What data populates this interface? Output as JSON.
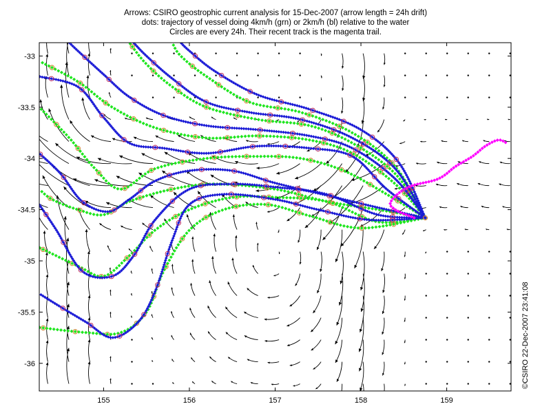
{
  "title_lines": [
    "Arrows: CSIRO geostrophic current analysis for 15-Dec-2007 (arrow length = 24h drift)",
    "dots: trajectory of vessel doing 4km/h (grn) or 2km/h (bl) relative to the water",
    "Circles are every 24h. Their recent track is the magenta trail."
  ],
  "side_text": "©CSIRO 22-Dec-2007 23:41:08",
  "chart_data": {
    "type": "line",
    "xlim": [
      154.25,
      159.75
    ],
    "ylim": [
      -36.27,
      -32.87
    ],
    "xticks": [
      155,
      156,
      157,
      158,
      159
    ],
    "yticks": [
      -33,
      -33.5,
      -34,
      -34.5,
      -35,
      -35.5,
      -36
    ],
    "xtick_labels": [
      "155",
      "156",
      "157",
      "158",
      "159"
    ],
    "ytick_labels": [
      "-33",
      "-33.5",
      "-34",
      "-34.5",
      "-35",
      "-35.5",
      "-36"
    ],
    "grid": false,
    "colors": {
      "green": "#1ee61e",
      "blue": "#1a1ad6",
      "magenta": "#ff00ff",
      "circle": "#d08030",
      "arrows": "#000000"
    },
    "start_point": [
      158.75,
      -34.58
    ],
    "series": [
      {
        "color": "green",
        "points": [
          [
            158.75,
            -34.58
          ],
          [
            158.2,
            -34.5
          ],
          [
            157.6,
            -34.42
          ],
          [
            157.0,
            -34.3
          ],
          [
            156.3,
            -34.25
          ],
          [
            155.8,
            -34.3
          ],
          [
            155.3,
            -34.42
          ],
          [
            155.0,
            -34.55
          ],
          [
            154.7,
            -34.5
          ],
          [
            154.4,
            -34.4
          ],
          [
            154.25,
            -34.3
          ]
        ]
      },
      {
        "color": "green",
        "points": [
          [
            158.75,
            -34.58
          ],
          [
            158.2,
            -34.62
          ],
          [
            157.6,
            -34.42
          ],
          [
            157.0,
            -34.38
          ],
          [
            156.5,
            -34.38
          ],
          [
            156.0,
            -34.5
          ],
          [
            155.6,
            -34.7
          ],
          [
            155.3,
            -34.95
          ],
          [
            155.0,
            -35.15
          ],
          [
            154.7,
            -35.05
          ],
          [
            154.25,
            -34.87
          ]
        ]
      },
      {
        "color": "green",
        "points": [
          [
            158.75,
            -34.58
          ],
          [
            158.0,
            -34.68
          ],
          [
            157.4,
            -34.56
          ],
          [
            156.9,
            -34.45
          ],
          [
            156.4,
            -34.5
          ],
          [
            156.0,
            -34.7
          ],
          [
            155.7,
            -35.1
          ],
          [
            155.5,
            -35.5
          ],
          [
            155.2,
            -35.7
          ],
          [
            154.8,
            -35.7
          ],
          [
            154.25,
            -35.65
          ]
        ]
      },
      {
        "color": "green",
        "points": [
          [
            158.75,
            -34.58
          ],
          [
            158.3,
            -34.35
          ],
          [
            157.8,
            -34.12
          ],
          [
            157.3,
            -34.0
          ],
          [
            156.8,
            -33.98
          ],
          [
            156.2,
            -34.0
          ],
          [
            155.6,
            -34.1
          ],
          [
            155.2,
            -34.3
          ],
          [
            154.9,
            -34.1
          ],
          [
            154.6,
            -33.8
          ],
          [
            154.25,
            -33.5
          ]
        ]
      },
      {
        "color": "green",
        "points": [
          [
            158.75,
            -34.58
          ],
          [
            158.4,
            -34.25
          ],
          [
            157.9,
            -33.95
          ],
          [
            157.4,
            -33.82
          ],
          [
            156.8,
            -33.78
          ],
          [
            156.2,
            -33.8
          ],
          [
            155.6,
            -33.7
          ],
          [
            155.1,
            -33.5
          ],
          [
            154.7,
            -33.25
          ],
          [
            154.25,
            -33.05
          ]
        ]
      },
      {
        "color": "green",
        "points": [
          [
            158.75,
            -34.58
          ],
          [
            158.4,
            -34.15
          ],
          [
            157.9,
            -33.85
          ],
          [
            157.4,
            -33.68
          ],
          [
            156.8,
            -33.62
          ],
          [
            156.2,
            -33.5
          ],
          [
            155.8,
            -33.3
          ],
          [
            155.5,
            -33.08
          ],
          [
            155.3,
            -32.87
          ]
        ]
      },
      {
        "color": "green",
        "points": [
          [
            158.75,
            -34.58
          ],
          [
            158.4,
            -34.08
          ],
          [
            157.9,
            -33.75
          ],
          [
            157.3,
            -33.55
          ],
          [
            156.7,
            -33.45
          ],
          [
            156.2,
            -33.2
          ],
          [
            155.9,
            -33.0
          ],
          [
            155.8,
            -32.87
          ]
        ]
      },
      {
        "color": "blue",
        "points": [
          [
            158.75,
            -34.58
          ],
          [
            158.2,
            -34.48
          ],
          [
            157.6,
            -34.36
          ],
          [
            157.0,
            -34.24
          ],
          [
            156.5,
            -34.12
          ],
          [
            156.0,
            -34.12
          ],
          [
            155.6,
            -34.22
          ],
          [
            155.3,
            -34.4
          ],
          [
            155.05,
            -34.52
          ],
          [
            154.75,
            -34.42
          ],
          [
            154.5,
            -34.15
          ],
          [
            154.25,
            -33.95
          ]
        ]
      },
      {
        "color": "blue",
        "points": [
          [
            158.75,
            -34.58
          ],
          [
            158.2,
            -34.55
          ],
          [
            157.6,
            -34.35
          ],
          [
            157.0,
            -34.28
          ],
          [
            156.5,
            -34.25
          ],
          [
            156.0,
            -34.3
          ],
          [
            155.6,
            -34.6
          ],
          [
            155.35,
            -34.95
          ],
          [
            155.1,
            -35.15
          ],
          [
            154.75,
            -35.1
          ],
          [
            154.45,
            -34.7
          ],
          [
            154.25,
            -34.45
          ]
        ]
      },
      {
        "color": "blue",
        "points": [
          [
            158.75,
            -34.58
          ],
          [
            158.1,
            -34.6
          ],
          [
            157.5,
            -34.5
          ],
          [
            157.0,
            -34.4
          ],
          [
            156.4,
            -34.35
          ],
          [
            156.0,
            -34.45
          ],
          [
            155.8,
            -34.8
          ],
          [
            155.6,
            -35.3
          ],
          [
            155.4,
            -35.6
          ],
          [
            155.1,
            -35.75
          ],
          [
            154.8,
            -35.6
          ],
          [
            154.5,
            -35.45
          ],
          [
            154.25,
            -35.32
          ]
        ]
      },
      {
        "color": "blue",
        "points": [
          [
            158.75,
            -34.58
          ],
          [
            158.3,
            -34.3
          ],
          [
            157.9,
            -33.98
          ],
          [
            157.4,
            -33.9
          ],
          [
            156.8,
            -33.88
          ],
          [
            156.2,
            -33.95
          ],
          [
            155.7,
            -33.9
          ],
          [
            155.3,
            -33.85
          ],
          [
            155.0,
            -33.6
          ],
          [
            154.7,
            -33.3
          ],
          [
            154.25,
            -33.2
          ]
        ]
      },
      {
        "color": "blue",
        "points": [
          [
            158.75,
            -34.58
          ],
          [
            158.4,
            -34.2
          ],
          [
            157.9,
            -33.9
          ],
          [
            157.4,
            -33.78
          ],
          [
            156.8,
            -33.72
          ],
          [
            156.2,
            -33.68
          ],
          [
            155.7,
            -33.58
          ],
          [
            155.3,
            -33.4
          ],
          [
            155.0,
            -33.18
          ],
          [
            154.7,
            -32.95
          ],
          [
            154.6,
            -32.87
          ]
        ]
      },
      {
        "color": "blue",
        "points": [
          [
            158.75,
            -34.58
          ],
          [
            158.4,
            -34.1
          ],
          [
            157.9,
            -33.8
          ],
          [
            157.3,
            -33.62
          ],
          [
            156.7,
            -33.55
          ],
          [
            156.2,
            -33.45
          ],
          [
            155.8,
            -33.22
          ],
          [
            155.5,
            -33.0
          ],
          [
            155.35,
            -32.87
          ]
        ]
      },
      {
        "color": "blue",
        "points": [
          [
            158.75,
            -34.58
          ],
          [
            158.45,
            -34.05
          ],
          [
            158.0,
            -33.72
          ],
          [
            157.4,
            -33.52
          ],
          [
            156.8,
            -33.38
          ],
          [
            156.3,
            -33.15
          ],
          [
            156.0,
            -32.95
          ],
          [
            155.9,
            -32.87
          ]
        ]
      },
      {
        "color": "magenta",
        "points": [
          [
            158.62,
            -34.58
          ],
          [
            158.4,
            -34.5
          ],
          [
            158.35,
            -34.42
          ],
          [
            158.55,
            -34.28
          ],
          [
            158.9,
            -34.2
          ],
          [
            159.1,
            -34.08
          ],
          [
            159.3,
            -33.98
          ],
          [
            159.45,
            -33.88
          ],
          [
            159.6,
            -33.82
          ],
          [
            159.7,
            -33.85
          ]
        ]
      }
    ]
  }
}
